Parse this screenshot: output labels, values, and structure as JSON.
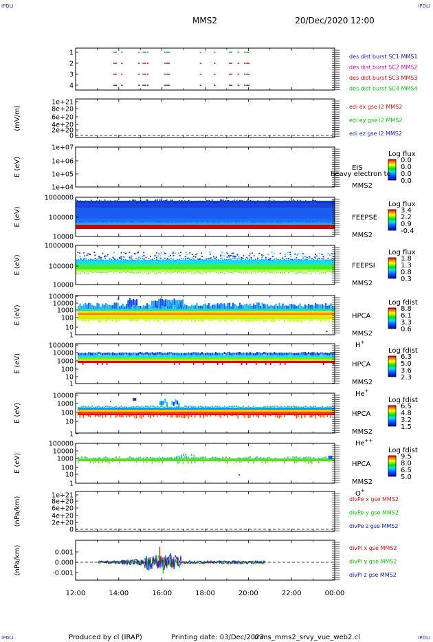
{
  "header": {
    "corner_label": "IPDLI",
    "title": "MMS2",
    "datetime": "20/Dec/2020 12:00"
  },
  "footer": {
    "produced_by": "Produced by cl (IRAP)",
    "printing_date": "Printing date: 03/Dec/2023",
    "filename": "mms_mms2_srvy_vue_web2.cl"
  },
  "time_axis": {
    "start_hour": 12,
    "end_hour": 24,
    "tick_labels": [
      "12:00",
      "14:00",
      "16:00",
      "18:00",
      "20:00",
      "22:00",
      "00:00"
    ]
  },
  "colors": {
    "red": "#d01010",
    "green": "#10c010",
    "blue": "#1020c0",
    "magenta": "#d010d0",
    "spectro_bg": "#1450e0"
  },
  "chart_data": [
    {
      "id": "burst",
      "type": "scatter",
      "yticks": [
        "1",
        "2",
        "3",
        "4"
      ],
      "ylim": [
        0.5,
        4.5
      ],
      "legend": [
        {
          "text": "des dist burst SC1 MMS1",
          "color": "#1020c0"
        },
        {
          "text": "des dist burst SC2 MMS2",
          "color": "#d010d0"
        },
        {
          "text": "des dist burst SC3 MMS3",
          "color": "#d01010"
        },
        {
          "text": "des dist burst SC4 MMS4",
          "color": "#10c010"
        }
      ],
      "bursts_hours": [
        13.75,
        14.1,
        14.9,
        15.1,
        15.3,
        16.1,
        16.2,
        17.75,
        18.4,
        19.1,
        19.5,
        19.8,
        19.9
      ],
      "rows": [
        4,
        3,
        2,
        1
      ]
    },
    {
      "id": "edi",
      "type": "line",
      "ylabel": "(mV/m)",
      "yticks": [
        "1e+21",
        "8e+20",
        "6e+20",
        "4e+20",
        "2e+20",
        "0"
      ],
      "ylim": [
        0,
        1e+21
      ],
      "legend": [
        {
          "text": "edi ex gse l2 MMS2",
          "color": "#d01010"
        },
        {
          "text": "edi ey gse l2 MMS2",
          "color": "#10c010"
        },
        {
          "text": "edi ez gse l2 MMS2",
          "color": "#1020c0"
        }
      ]
    },
    {
      "id": "eis",
      "type": "heatmap",
      "ylabel": "E (eV)",
      "yticks": [
        "1e+07",
        "1e+06",
        "1e+05",
        "1e+04"
      ],
      "instrument": "EIS",
      "sc": "MMS2",
      "overlay": "heavy electron to",
      "cb_title": "Log flux",
      "cb_ticks": [
        "0.0",
        "0.0",
        "0.0",
        "0.0"
      ]
    },
    {
      "id": "feepse",
      "type": "heatmap",
      "ylabel": "E (eV)",
      "yticks": [
        "1000000",
        "100000",
        "10000"
      ],
      "instrument": "FEEPSE",
      "sc": "MMS2",
      "cb_title": "Log flux",
      "cb_ticks": [
        "3.4",
        "2.2",
        "0.9",
        "-0.4"
      ]
    },
    {
      "id": "feepsi",
      "type": "heatmap",
      "ylabel": "E (eV)",
      "yticks": [
        "1000000",
        "100000",
        "10000"
      ],
      "instrument": "FEEPSI",
      "sc": "MMS2",
      "cb_title": "Log flux",
      "cb_ticks": [
        "1.8",
        "1.3",
        "0.8",
        "0.3"
      ]
    },
    {
      "id": "hpca_h",
      "type": "heatmap",
      "ylabel": "E (eV)",
      "yticks": [
        "100000",
        "10000",
        "1000",
        "100",
        "10",
        "1"
      ],
      "instrument": "HPCA",
      "sc": "MMS2",
      "species": "H",
      "species_sup": "+",
      "cb_title": "Log fdist",
      "cb_ticks": [
        "8.8",
        "6.1",
        "3.3",
        "0.6"
      ]
    },
    {
      "id": "hpca_he",
      "type": "heatmap",
      "ylabel": "E (eV)",
      "yticks": [
        "100000",
        "10000",
        "1000",
        "100",
        "10",
        "1"
      ],
      "instrument": "HPCA",
      "sc": "MMS2",
      "species": "He",
      "species_sup": "+",
      "cb_title": "Log fdist",
      "cb_ticks": [
        "6.3",
        "5.0",
        "3.6",
        "2.3"
      ]
    },
    {
      "id": "hpca_hepp",
      "type": "heatmap",
      "ylabel": "E (eV)",
      "yticks": [
        "10000",
        "1000",
        "100",
        "10",
        "1"
      ],
      "instrument": "HPCA",
      "sc": "MMS2",
      "species": "He",
      "species_sup": "++",
      "cb_title": "Log fdist",
      "cb_ticks": [
        "6.5",
        "4.8",
        "3.2",
        "1.5"
      ]
    },
    {
      "id": "hpca_o",
      "type": "heatmap",
      "ylabel": "E (eV)",
      "yticks": [
        "100000",
        "10000",
        "1000",
        "100",
        "10",
        "1"
      ],
      "instrument": "HPCA",
      "sc": "MMS2",
      "species": "O",
      "species_sup": "+",
      "cb_title": "Log fdist",
      "cb_ticks": [
        "9.5",
        "8.0",
        "6.5",
        "5.0"
      ]
    },
    {
      "id": "divpe",
      "type": "line",
      "ylabel": "(nPa/km)",
      "yticks": [
        "1e+21",
        "8e+20",
        "6e+20",
        "4e+20",
        "2e+20",
        "0"
      ],
      "ylim": [
        0,
        1e+21
      ],
      "legend": [
        {
          "text": "divPe x gse MMS2",
          "color": "#d01010"
        },
        {
          "text": "divPe y gse MMS2",
          "color": "#10c010"
        },
        {
          "text": "divPe z gse MMS2",
          "color": "#1020c0"
        }
      ]
    },
    {
      "id": "divpi",
      "type": "line",
      "ylabel": "(nPa/km)",
      "yticks": [
        "0.001",
        "0.000",
        "-0.001"
      ],
      "ylim": [
        -0.0016,
        0.0016
      ],
      "data_start_hour": 13.05,
      "data_end_hour": 20.8,
      "legend": [
        {
          "text": "divPi x gse MMS2",
          "color": "#d01010"
        },
        {
          "text": "divPi y gse MMS2",
          "color": "#10c010"
        },
        {
          "text": "divPi z gse MMS2",
          "color": "#1020c0"
        }
      ]
    }
  ]
}
